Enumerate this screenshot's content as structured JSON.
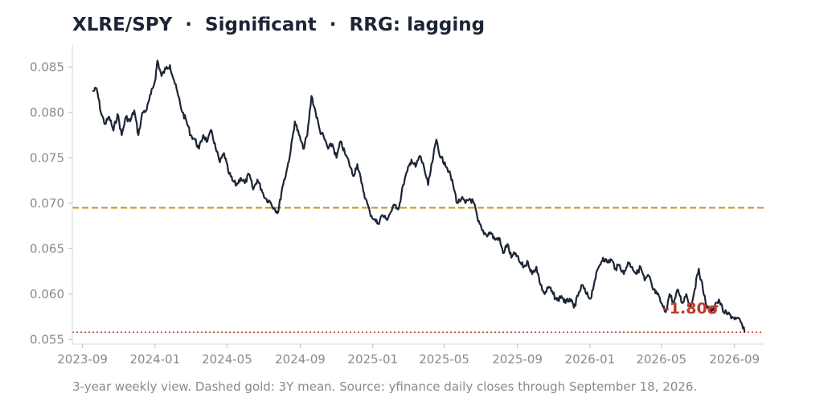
{
  "chart_data": {
    "type": "line",
    "title": "XLRE/SPY  ·  Significant  ·  RRG: lagging",
    "xlabel": "",
    "ylabel": "",
    "x_range": [
      "2023-08-15",
      "2026-10-20"
    ],
    "ylim": [
      0.0545,
      0.0875
    ],
    "x_ticks": [
      "2023-09",
      "2024-01",
      "2024-05",
      "2024-09",
      "2025-01",
      "2025-05",
      "2025-09",
      "2026-01",
      "2026-05",
      "2026-09"
    ],
    "y_ticks": [
      "0.055",
      "0.060",
      "0.065",
      "0.070",
      "0.075",
      "0.080",
      "0.085"
    ],
    "grid": false,
    "series": [
      {
        "color": "#1c2536",
        "points": [
          [
            "2023-09-18",
            0.0823
          ],
          [
            "2023-09-25",
            0.0826
          ],
          [
            "2023-10-02",
            0.08
          ],
          [
            "2023-10-09",
            0.0787
          ],
          [
            "2023-10-16",
            0.0795
          ],
          [
            "2023-10-23",
            0.078
          ],
          [
            "2023-10-30",
            0.0798
          ],
          [
            "2023-11-06",
            0.0775
          ],
          [
            "2023-11-13",
            0.0795
          ],
          [
            "2023-11-20",
            0.079
          ],
          [
            "2023-11-27",
            0.0802
          ],
          [
            "2023-12-04",
            0.0775
          ],
          [
            "2023-12-11",
            0.08
          ],
          [
            "2023-12-18",
            0.0803
          ],
          [
            "2023-12-25",
            0.082
          ],
          [
            "2024-01-01",
            0.0835
          ],
          [
            "2024-01-05",
            0.0857
          ],
          [
            "2024-01-12",
            0.084
          ],
          [
            "2024-01-19",
            0.0848
          ],
          [
            "2024-01-26",
            0.0852
          ],
          [
            "2024-02-02",
            0.0835
          ],
          [
            "2024-02-09",
            0.0818
          ],
          [
            "2024-02-16",
            0.08
          ],
          [
            "2024-02-23",
            0.079
          ],
          [
            "2024-03-01",
            0.0775
          ],
          [
            "2024-03-08",
            0.077
          ],
          [
            "2024-03-15",
            0.076
          ],
          [
            "2024-03-22",
            0.0775
          ],
          [
            "2024-03-29",
            0.0768
          ],
          [
            "2024-04-05",
            0.078
          ],
          [
            "2024-04-12",
            0.076
          ],
          [
            "2024-04-19",
            0.0745
          ],
          [
            "2024-04-26",
            0.0755
          ],
          [
            "2024-05-03",
            0.0735
          ],
          [
            "2024-05-10",
            0.0725
          ],
          [
            "2024-05-17",
            0.072
          ],
          [
            "2024-05-24",
            0.0728
          ],
          [
            "2024-05-31",
            0.0722
          ],
          [
            "2024-06-07",
            0.0732
          ],
          [
            "2024-06-14",
            0.0715
          ],
          [
            "2024-06-21",
            0.0726
          ],
          [
            "2024-06-28",
            0.0715
          ],
          [
            "2024-07-05",
            0.0705
          ],
          [
            "2024-07-12",
            0.0702
          ],
          [
            "2024-07-19",
            0.0695
          ],
          [
            "2024-07-26",
            0.069
          ],
          [
            "2024-08-02",
            0.0718
          ],
          [
            "2024-08-09",
            0.0735
          ],
          [
            "2024-08-16",
            0.0758
          ],
          [
            "2024-08-23",
            0.079
          ],
          [
            "2024-08-30",
            0.0775
          ],
          [
            "2024-09-06",
            0.076
          ],
          [
            "2024-09-13",
            0.0775
          ],
          [
            "2024-09-20",
            0.0818
          ],
          [
            "2024-09-27",
            0.08
          ],
          [
            "2024-10-04",
            0.078
          ],
          [
            "2024-10-11",
            0.0772
          ],
          [
            "2024-10-18",
            0.076
          ],
          [
            "2024-10-25",
            0.0765
          ],
          [
            "2024-11-01",
            0.075
          ],
          [
            "2024-11-08",
            0.0768
          ],
          [
            "2024-11-15",
            0.0755
          ],
          [
            "2024-11-22",
            0.0745
          ],
          [
            "2024-11-29",
            0.073
          ],
          [
            "2024-12-06",
            0.0743
          ],
          [
            "2024-12-13",
            0.0722
          ],
          [
            "2024-12-20",
            0.0705
          ],
          [
            "2024-12-27",
            0.069
          ],
          [
            "2025-01-03",
            0.0682
          ],
          [
            "2025-01-10",
            0.0678
          ],
          [
            "2025-01-17",
            0.0687
          ],
          [
            "2025-01-24",
            0.0682
          ],
          [
            "2025-01-31",
            0.069
          ],
          [
            "2025-02-07",
            0.0698
          ],
          [
            "2025-02-14",
            0.0695
          ],
          [
            "2025-02-21",
            0.072
          ],
          [
            "2025-02-28",
            0.0735
          ],
          [
            "2025-03-07",
            0.0748
          ],
          [
            "2025-03-14",
            0.074
          ],
          [
            "2025-03-21",
            0.0752
          ],
          [
            "2025-03-28",
            0.074
          ],
          [
            "2025-04-04",
            0.072
          ],
          [
            "2025-04-11",
            0.0745
          ],
          [
            "2025-04-18",
            0.077
          ],
          [
            "2025-04-25",
            0.075
          ],
          [
            "2025-05-02",
            0.0745
          ],
          [
            "2025-05-09",
            0.0735
          ],
          [
            "2025-05-16",
            0.072
          ],
          [
            "2025-05-23",
            0.07
          ],
          [
            "2025-05-30",
            0.0705
          ],
          [
            "2025-06-06",
            0.07
          ],
          [
            "2025-06-13",
            0.0705
          ],
          [
            "2025-06-20",
            0.07
          ],
          [
            "2025-06-27",
            0.068
          ],
          [
            "2025-07-04",
            0.067
          ],
          [
            "2025-07-11",
            0.0665
          ],
          [
            "2025-07-18",
            0.0668
          ],
          [
            "2025-07-25",
            0.066
          ],
          [
            "2025-08-01",
            0.0662
          ],
          [
            "2025-08-08",
            0.0645
          ],
          [
            "2025-08-15",
            0.0655
          ],
          [
            "2025-08-22",
            0.064
          ],
          [
            "2025-08-29",
            0.0645
          ],
          [
            "2025-09-05",
            0.0635
          ],
          [
            "2025-09-12",
            0.063
          ],
          [
            "2025-09-19",
            0.0635
          ],
          [
            "2025-09-26",
            0.0622
          ],
          [
            "2025-10-03",
            0.063
          ],
          [
            "2025-10-10",
            0.061
          ],
          [
            "2025-10-17",
            0.06
          ],
          [
            "2025-10-24",
            0.0608
          ],
          [
            "2025-10-31",
            0.06
          ],
          [
            "2025-11-07",
            0.0593
          ],
          [
            "2025-11-14",
            0.0598
          ],
          [
            "2025-11-21",
            0.059
          ],
          [
            "2025-11-28",
            0.0595
          ],
          [
            "2025-12-05",
            0.0585
          ],
          [
            "2025-12-12",
            0.0598
          ],
          [
            "2025-12-19",
            0.061
          ],
          [
            "2025-12-26",
            0.06
          ],
          [
            "2026-01-02",
            0.0595
          ],
          [
            "2026-01-09",
            0.0615
          ],
          [
            "2026-01-16",
            0.063
          ],
          [
            "2026-01-23",
            0.064
          ],
          [
            "2026-01-30",
            0.0635
          ],
          [
            "2026-02-06",
            0.0638
          ],
          [
            "2026-02-13",
            0.0628
          ],
          [
            "2026-02-20",
            0.0632
          ],
          [
            "2026-02-27",
            0.0622
          ],
          [
            "2026-03-06",
            0.0635
          ],
          [
            "2026-03-13",
            0.063
          ],
          [
            "2026-03-20",
            0.0622
          ],
          [
            "2026-03-27",
            0.063
          ],
          [
            "2026-04-03",
            0.0615
          ],
          [
            "2026-04-10",
            0.062
          ],
          [
            "2026-04-17",
            0.0605
          ],
          [
            "2026-04-24",
            0.06
          ],
          [
            "2026-05-01",
            0.059
          ],
          [
            "2026-05-08",
            0.058
          ],
          [
            "2026-05-15",
            0.06
          ],
          [
            "2026-05-22",
            0.059
          ],
          [
            "2026-05-29",
            0.0605
          ],
          [
            "2026-06-05",
            0.059
          ],
          [
            "2026-06-12",
            0.06
          ],
          [
            "2026-06-19",
            0.0585
          ],
          [
            "2026-06-26",
            0.0605
          ],
          [
            "2026-07-03",
            0.0628
          ],
          [
            "2026-07-10",
            0.0605
          ],
          [
            "2026-07-17",
            0.0585
          ],
          [
            "2026-07-24",
            0.058
          ],
          [
            "2026-07-31",
            0.059
          ],
          [
            "2026-08-07",
            0.0592
          ],
          [
            "2026-08-14",
            0.058
          ],
          [
            "2026-08-21",
            0.0578
          ],
          [
            "2026-08-28",
            0.0575
          ],
          [
            "2026-09-04",
            0.0573
          ],
          [
            "2026-09-11",
            0.057
          ],
          [
            "2026-09-18",
            0.0558
          ]
        ]
      }
    ],
    "reference_lines": [
      {
        "kind": "mean",
        "y": 0.0695,
        "color": "#c8901e",
        "style": "dashed"
      },
      {
        "kind": "sigma",
        "y": 0.0558,
        "color": "#c0392b",
        "style": "dotted"
      }
    ],
    "annotation": {
      "text": "-1.80σ",
      "x": "2026-06-20",
      "y": 0.0584,
      "color": "#c0392b"
    },
    "footnote": "3-year weekly view. Dashed gold: 3Y mean. Source: yfinance daily closes through September 18, 2026."
  }
}
